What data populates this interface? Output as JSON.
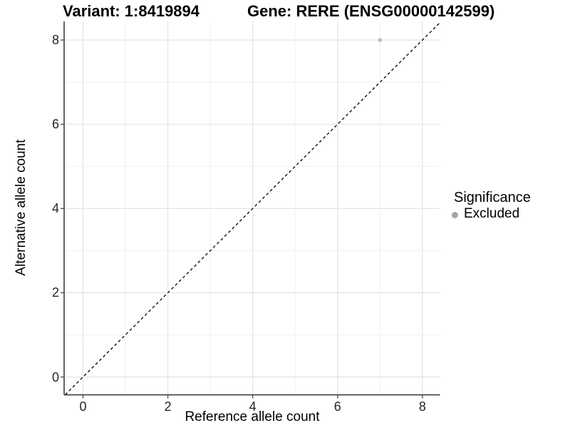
{
  "page": {
    "background": "#ffffff"
  },
  "titles": {
    "variant": "Variant: 1:8419894",
    "gene": "Gene: RERE (ENSG00000142599)"
  },
  "axes": {
    "x": {
      "label": "Reference allele count",
      "tick_labels": [
        "0",
        "2",
        "4",
        "6",
        "8"
      ],
      "tick_values": [
        0,
        2,
        4,
        6,
        8
      ],
      "minor_values": [
        1,
        3,
        5,
        7
      ],
      "range": [
        -0.45,
        8.42
      ]
    },
    "y": {
      "label": "Alternative allele count",
      "tick_labels": [
        "0",
        "2",
        "4",
        "6",
        "8"
      ],
      "tick_values": [
        0,
        2,
        4,
        6,
        8
      ],
      "minor_values": [
        1,
        3,
        5,
        7
      ],
      "range": [
        -0.42,
        8.44
      ]
    }
  },
  "legend": {
    "title": "Significance",
    "entries": [
      {
        "label": "Excluded",
        "marker": "circle",
        "color": "#a6a6a6"
      }
    ]
  },
  "chart_data": {
    "type": "scatter",
    "title": "Variant: 1:8419894   Gene: RERE (ENSG00000142599)",
    "xlabel": "Reference allele count",
    "ylabel": "Alternative allele count",
    "xlim": [
      -0.45,
      8.42
    ],
    "ylim": [
      -0.42,
      8.44
    ],
    "x_ticks": [
      0,
      2,
      4,
      6,
      8
    ],
    "y_ticks": [
      0,
      2,
      4,
      6,
      8
    ],
    "grid": {
      "major": [
        0,
        2,
        4,
        6,
        8
      ],
      "minor": [
        1,
        3,
        5,
        7
      ],
      "visible": true
    },
    "series": [
      {
        "name": "Excluded",
        "marker": "circle",
        "color": "#bdbdbd",
        "points": [
          {
            "x": 7,
            "y": 8
          }
        ]
      }
    ],
    "reference_line": {
      "type": "identity y=x",
      "style": "dashed",
      "color": "#000000",
      "from": {
        "x": -0.42,
        "y": -0.42
      },
      "to": {
        "x": 8.42,
        "y": 8.42
      }
    },
    "legend": {
      "title": "Significance",
      "position": "right",
      "entries": [
        "Excluded"
      ]
    }
  },
  "colors": {
    "grid_major": "#e3e3e3",
    "grid_minor": "#f0f0f0",
    "axis_line": "#4a4a4a",
    "tick_mark": "#4a4a4a",
    "tick_text": "#262626",
    "point": "#bdbdbd",
    "legend_point": "#a6a6a6",
    "reference_line": "#000000"
  }
}
